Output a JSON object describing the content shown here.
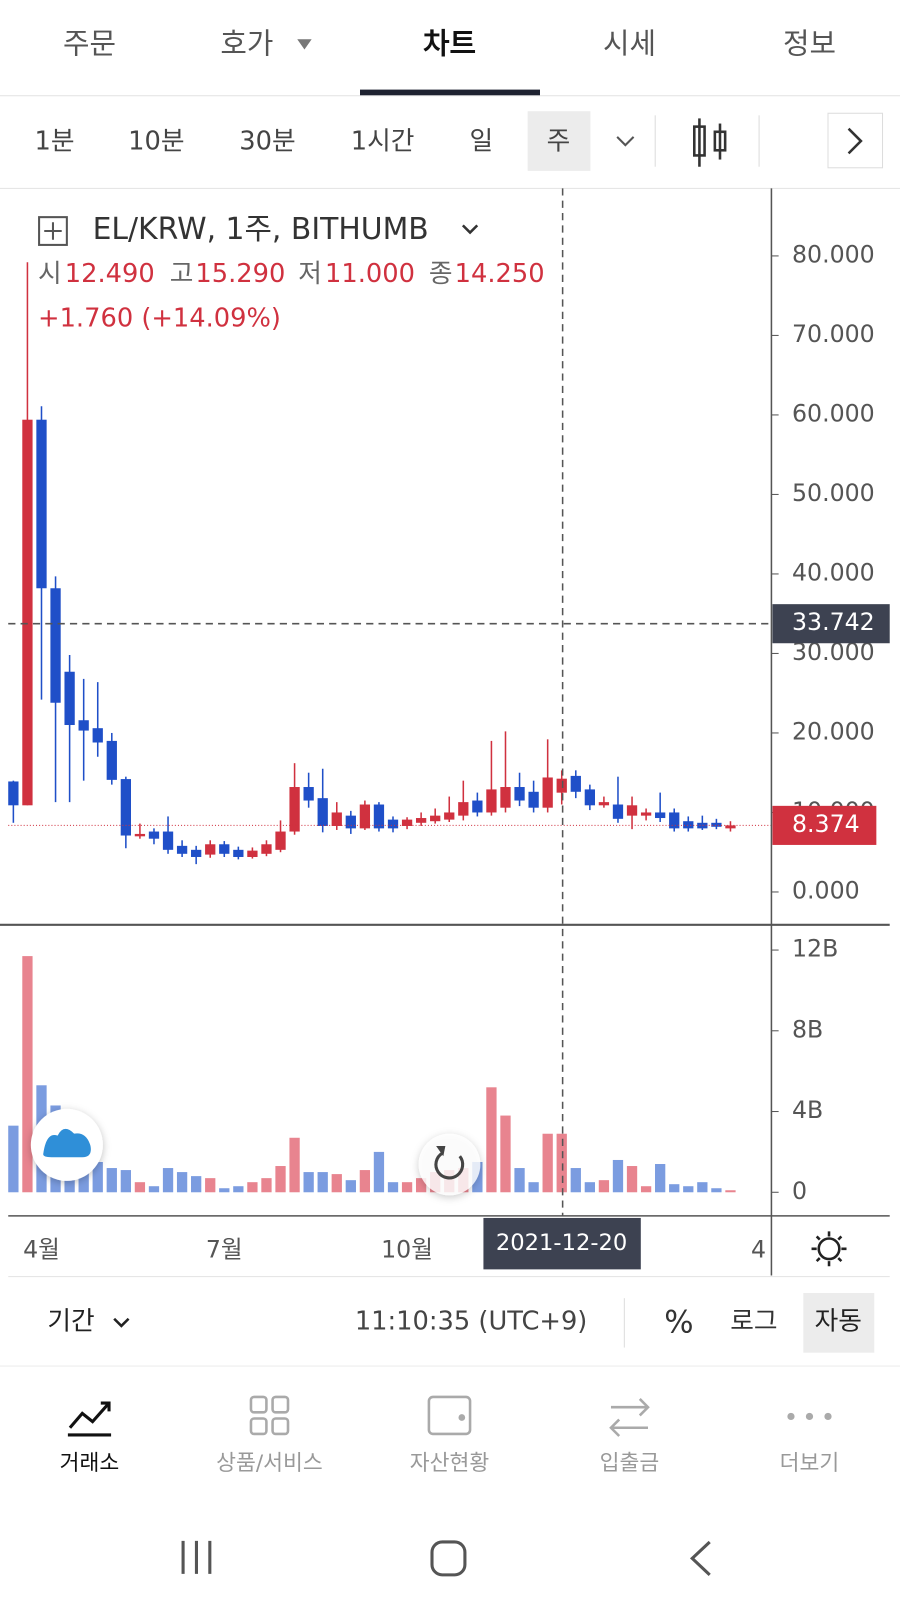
{
  "tabs": [
    "주문",
    "호가",
    "차트",
    "시세",
    "정보"
  ],
  "intervals": [
    "1분",
    "10분",
    "30분",
    "1시간",
    "일",
    "주"
  ],
  "legend": {
    "labels": [
      "시",
      "고",
      "저",
      "종"
    ],
    "values": [
      "12.490",
      "15.290",
      "11.000",
      "14.250"
    ],
    "change": "+1.760 (+14.09%)"
  },
  "chart_data": {
    "type": "candlestick",
    "title": "EL/KRW, 1주, BITHUMB",
    "categories": [
      null,
      null,
      "4월",
      null,
      null,
      null,
      null,
      null,
      null,
      null,
      null,
      null,
      null,
      null,
      null,
      "7월",
      null,
      null,
      null,
      null,
      null,
      null,
      null,
      null,
      null,
      null,
      null,
      null,
      "10월",
      null,
      null,
      null,
      null,
      null,
      null,
      null,
      null,
      null,
      null,
      null,
      null,
      null,
      null,
      null,
      null,
      null,
      null,
      null,
      null,
      null,
      null,
      null,
      null,
      "4"
    ],
    "open": [
      13.9,
      10.9,
      59.4,
      38.2,
      27.7,
      21.6,
      20.6,
      19.0,
      14.2,
      7.0,
      7.6,
      7.6,
      5.8,
      5.3,
      4.7,
      6.0,
      5.3,
      4.4,
      4.8,
      5.3,
      7.6,
      13.2,
      11.8,
      8.3,
      9.6,
      8.0,
      11.0,
      9.1,
      8.3,
      8.7,
      8.9,
      9.1,
      9.6,
      11.5,
      10.0,
      10.6,
      13.2,
      12.6,
      10.6,
      12.49,
      14.6,
      12.9,
      10.9,
      11.0,
      9.6,
      9.6,
      10.0,
      10.0,
      8.9,
      8.7,
      8.7,
      8.0,
      null,
      null
    ],
    "high": [
      14.0,
      79.2,
      61.1,
      39.7,
      29.8,
      26.8,
      26.4,
      20.0,
      14.5,
      8.6,
      8.0,
      9.5,
      6.5,
      5.8,
      6.5,
      6.4,
      5.7,
      5.6,
      6.5,
      9.0,
      16.2,
      15.0,
      15.5,
      11.3,
      10.2,
      11.5,
      11.3,
      9.5,
      9.4,
      10.0,
      10.5,
      12.0,
      14.0,
      12.5,
      19.0,
      20.2,
      15.0,
      14.0,
      19.2,
      15.29,
      15.3,
      13.5,
      12.0,
      14.5,
      12.0,
      10.5,
      12.5,
      10.5,
      9.5,
      9.6,
      9.2,
      8.9,
      null,
      null
    ],
    "low": [
      8.7,
      10.9,
      24.2,
      11.3,
      11.3,
      14.0,
      17.0,
      13.5,
      5.5,
      6.7,
      6.0,
      4.8,
      4.4,
      3.5,
      4.3,
      4.4,
      4.1,
      4.2,
      4.5,
      5.0,
      7.2,
      10.6,
      7.5,
      7.8,
      7.3,
      7.8,
      7.6,
      7.5,
      7.9,
      8.3,
      8.6,
      8.8,
      9.0,
      9.5,
      9.6,
      10.0,
      10.8,
      10.0,
      10.0,
      11.0,
      11.8,
      10.3,
      10.6,
      8.7,
      7.9,
      9.0,
      8.8,
      7.6,
      7.6,
      7.8,
      7.9,
      7.6,
      null,
      null
    ],
    "close": [
      10.9,
      59.4,
      38.2,
      23.8,
      21.0,
      20.3,
      18.8,
      14.1,
      7.1,
      7.3,
      6.7,
      5.3,
      4.8,
      4.4,
      6.0,
      4.8,
      4.4,
      5.2,
      6.0,
      7.6,
      13.2,
      11.5,
      8.3,
      10.0,
      8.0,
      11.0,
      8.0,
      8.0,
      9.1,
      9.3,
      9.6,
      10.0,
      11.3,
      10.0,
      12.9,
      13.2,
      11.5,
      10.6,
      14.4,
      14.25,
      12.6,
      10.9,
      11.3,
      9.2,
      10.9,
      10.0,
      9.3,
      8.0,
      8.0,
      8.0,
      8.2,
      8.374,
      null,
      null
    ],
    "volume": [
      3.3,
      11.7,
      5.3,
      4.3,
      3.0,
      2.5,
      1.5,
      1.2,
      1.1,
      0.5,
      0.3,
      1.2,
      1.0,
      0.8,
      0.7,
      0.2,
      0.3,
      0.5,
      0.7,
      1.3,
      2.7,
      1.0,
      1.0,
      0.9,
      0.6,
      1.1,
      2.0,
      0.5,
      0.5,
      0.7,
      1.0,
      1.1,
      1.2,
      1.5,
      5.2,
      3.8,
      1.2,
      0.5,
      2.9,
      2.9,
      1.2,
      0.5,
      0.6,
      1.6,
      1.3,
      0.3,
      1.4,
      0.4,
      0.3,
      0.5,
      0.2,
      0.1,
      null,
      null
    ],
    "up_color": "#d0313f",
    "down_color": "#1f4fc8",
    "volume_up_color": "#e8848f",
    "volume_down_color": "#7b9ce0",
    "ylim": [
      -4,
      88.5
    ],
    "yticks": [
      {
        "value": 0,
        "label": "0.000"
      },
      {
        "value": 10,
        "label": "10.000"
      },
      {
        "value": 20,
        "label": "20.000"
      },
      {
        "value": 30,
        "label": "30.000"
      },
      {
        "value": 40,
        "label": "40.000"
      },
      {
        "value": 50,
        "label": "50.000"
      },
      {
        "value": 60,
        "label": "60.000"
      },
      {
        "value": 70,
        "label": "70.000"
      },
      {
        "value": 80,
        "label": "80.000"
      }
    ],
    "volume_ylim": [
      -1.17,
      13.2
    ],
    "volume_ticks": [
      0,
      {
        "value": 4,
        "label": "4B"
      },
      {
        "value": 8,
        "label": "8B"
      },
      {
        "value": 12,
        "label": "12B"
      }
    ],
    "last_price": {
      "value": 8.374,
      "label": "8.374"
    },
    "crosshair_price": {
      "value": 33.742,
      "label": "33.742"
    },
    "crosshair_date": "2021-12-20"
  },
  "footer": {
    "period": "기간",
    "time": "11:10:35 (UTC+9)",
    "percent": "%",
    "log": "로그",
    "auto": "자동"
  },
  "nav": [
    "거래소",
    "상품/서비스",
    "자산현황",
    "입출금",
    "더보기"
  ]
}
